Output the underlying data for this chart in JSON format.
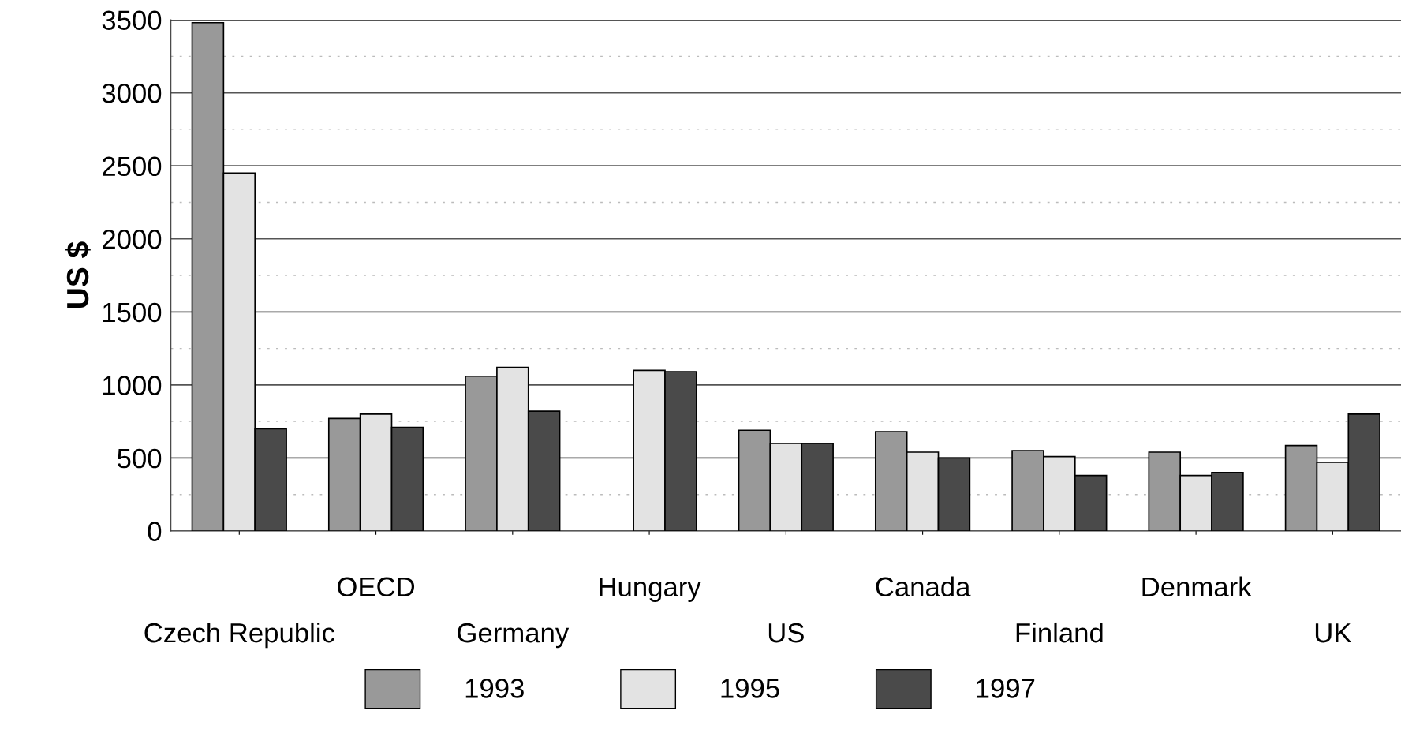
{
  "chart_data": {
    "type": "bar",
    "ylabel": "US $",
    "categories": [
      "Czech Republic",
      "OECD",
      "Germany",
      "Hungary",
      "US",
      "Canada",
      "Finland",
      "Denmark",
      "UK"
    ],
    "series": [
      {
        "name": "1993",
        "color": "#999999",
        "values": [
          3480,
          770,
          1060,
          null,
          690,
          680,
          550,
          540,
          585
        ]
      },
      {
        "name": "1995",
        "color": "#e3e3e3",
        "values": [
          2450,
          800,
          1120,
          1100,
          600,
          540,
          510,
          380,
          470
        ]
      },
      {
        "name": "1997",
        "color": "#4a4a4a",
        "values": [
          700,
          710,
          820,
          1090,
          600,
          500,
          380,
          400,
          800
        ]
      }
    ],
    "ylim": [
      0,
      3500
    ],
    "yticks": [
      0,
      500,
      1000,
      1500,
      2000,
      2500,
      3000,
      3500
    ],
    "grid": "y",
    "legend": "bottom"
  }
}
